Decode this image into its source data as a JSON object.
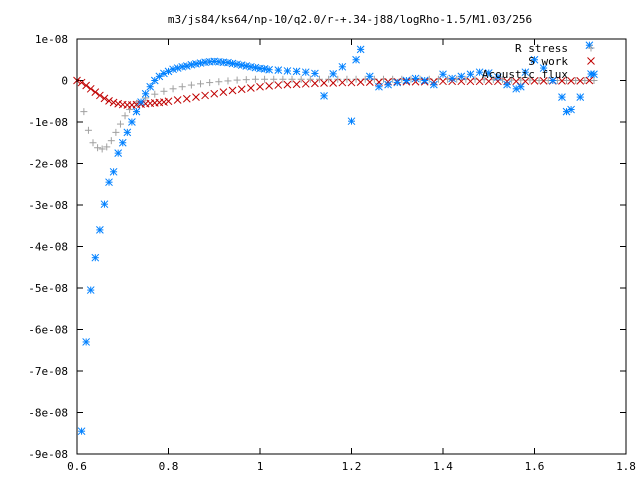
{
  "chart_data": {
    "type": "scatter",
    "title": "m3/js84/ks64/np-10/q2.0/r-+.34-j88/logRho-1.5/M1.03/256",
    "xlabel": "",
    "ylabel": "",
    "xlim": [
      0.6,
      1.8
    ],
    "ylim": [
      -9e-08,
      1e-08
    ],
    "x_ticks": [
      0.6,
      0.8,
      1.0,
      1.2,
      1.4,
      1.6,
      1.8
    ],
    "x_tick_labels": [
      "0.6",
      "0.8",
      "1",
      "1.2",
      "1.4",
      "1.6",
      "1.8"
    ],
    "y_ticks": [
      1e-08,
      0,
      -1e-08,
      -2e-08,
      -3e-08,
      -4e-08,
      -5e-08,
      -6e-08,
      -7e-08,
      -8e-08,
      -9e-08
    ],
    "y_tick_labels": [
      "1e-08",
      "0",
      "-1e-08",
      "-2e-08",
      "-3e-08",
      "-4e-08",
      "-5e-08",
      "-6e-08",
      "-7e-08",
      "-8e-08",
      "-9e-08"
    ],
    "grid": false,
    "legend_position": "top-right",
    "series": [
      {
        "name": "R stress",
        "marker": "plus",
        "color": "#a0a0a0",
        "x": [
          0.615,
          0.625,
          0.635,
          0.645,
          0.655,
          0.665,
          0.675,
          0.685,
          0.695,
          0.705,
          0.715,
          0.73,
          0.75,
          0.77,
          0.79,
          0.81,
          0.83,
          0.85,
          0.87,
          0.89,
          0.91,
          0.93,
          0.95,
          0.97,
          0.99,
          1.01,
          1.03,
          1.05,
          1.07,
          1.09,
          1.11,
          1.13,
          1.15,
          1.17,
          1.19,
          1.21,
          1.23,
          1.25,
          1.27,
          1.29,
          1.31,
          1.33,
          1.35,
          1.37,
          1.39,
          1.41,
          1.43,
          1.45,
          1.47,
          1.49,
          1.51,
          1.53,
          1.55,
          1.57,
          1.59,
          1.61,
          1.63,
          1.65,
          1.67,
          1.69,
          1.71,
          1.73
        ],
        "y": [
          -7.5e-09,
          -1.2e-08,
          -1.5e-08,
          -1.62e-08,
          -1.65e-08,
          -1.6e-08,
          -1.45e-08,
          -1.25e-08,
          -1.05e-08,
          -8.5e-09,
          -7e-09,
          -5.5e-09,
          -4.2e-09,
          -3.3e-09,
          -2.6e-09,
          -2e-09,
          -1.5e-09,
          -1.1e-09,
          -8e-10,
          -5e-10,
          -3e-10,
          -1e-10,
          1e-10,
          2e-10,
          3e-10,
          3e-10,
          3e-10,
          3e-10,
          3e-10,
          3e-10,
          3e-10,
          3e-10,
          3e-10,
          3e-10,
          3e-10,
          3e-10,
          3e-10,
          3e-10,
          3e-10,
          3e-10,
          3e-10,
          3e-10,
          3e-10,
          3e-10,
          3e-10,
          3e-10,
          3e-10,
          3e-10,
          3e-10,
          2e-10,
          2e-10,
          2e-10,
          1e-10,
          1e-10,
          1e-10,
          0,
          0,
          0,
          0,
          0,
          0,
          0
        ]
      },
      {
        "name": "S work",
        "marker": "cross",
        "color": "#c00000",
        "x": [
          0.6,
          0.61,
          0.62,
          0.63,
          0.64,
          0.65,
          0.66,
          0.67,
          0.68,
          0.69,
          0.7,
          0.71,
          0.72,
          0.73,
          0.74,
          0.75,
          0.76,
          0.77,
          0.78,
          0.79,
          0.8,
          0.82,
          0.84,
          0.86,
          0.88,
          0.9,
          0.92,
          0.94,
          0.96,
          0.98,
          1.0,
          1.02,
          1.04,
          1.06,
          1.08,
          1.1,
          1.12,
          1.14,
          1.16,
          1.18,
          1.2,
          1.22,
          1.24,
          1.26,
          1.28,
          1.3,
          1.32,
          1.34,
          1.36,
          1.38,
          1.4,
          1.42,
          1.44,
          1.46,
          1.48,
          1.5,
          1.52,
          1.54,
          1.56,
          1.58,
          1.6,
          1.62,
          1.64,
          1.66,
          1.68,
          1.7,
          1.72
        ],
        "y": [
          0,
          -5e-10,
          -1.2e-09,
          -2e-09,
          -2.8e-09,
          -3.6e-09,
          -4.3e-09,
          -4.9e-09,
          -5.3e-09,
          -5.6e-09,
          -5.8e-09,
          -5.9e-09,
          -5.9e-09,
          -5.8e-09,
          -5.7e-09,
          -5.6e-09,
          -5.5e-09,
          -5.4e-09,
          -5.3e-09,
          -5.2e-09,
          -5e-09,
          -4.7e-09,
          -4.4e-09,
          -4e-09,
          -3.6e-09,
          -3.2e-09,
          -2.8e-09,
          -2.4e-09,
          -2.1e-09,
          -1.8e-09,
          -1.5e-09,
          -1.3e-09,
          -1.1e-09,
          -1e-09,
          -9e-10,
          -8e-10,
          -7e-10,
          -6e-10,
          -6e-10,
          -5e-10,
          -5e-10,
          -4e-10,
          -4e-10,
          -4e-10,
          -3e-10,
          -3e-10,
          -3e-10,
          -3e-10,
          -3e-10,
          -3e-10,
          -2e-10,
          -2e-10,
          -2e-10,
          -2e-10,
          -2e-10,
          -2e-10,
          -2e-10,
          -2e-10,
          -2e-10,
          -2e-10,
          -1e-10,
          -1e-10,
          -1e-10,
          -1e-10,
          -1e-10,
          -1e-10,
          0
        ]
      },
      {
        "name": "Acoustic flux",
        "marker": "star",
        "color": "#0080ff",
        "x": [
          0.61,
          0.62,
          0.63,
          0.64,
          0.65,
          0.66,
          0.67,
          0.68,
          0.69,
          0.7,
          0.71,
          0.72,
          0.73,
          0.74,
          0.75,
          0.76,
          0.77,
          0.78,
          0.79,
          0.8,
          0.81,
          0.82,
          0.83,
          0.84,
          0.85,
          0.86,
          0.87,
          0.88,
          0.89,
          0.9,
          0.91,
          0.92,
          0.93,
          0.94,
          0.95,
          0.96,
          0.97,
          0.98,
          0.99,
          1.0,
          1.01,
          1.02,
          1.04,
          1.06,
          1.08,
          1.1,
          1.12,
          1.14,
          1.16,
          1.18,
          1.2,
          1.21,
          1.22,
          1.24,
          1.26,
          1.28,
          1.3,
          1.32,
          1.34,
          1.36,
          1.38,
          1.4,
          1.42,
          1.44,
          1.46,
          1.48,
          1.5,
          1.52,
          1.54,
          1.56,
          1.57,
          1.58,
          1.6,
          1.62,
          1.64,
          1.66,
          1.67,
          1.68,
          1.7,
          1.72,
          1.73
        ],
        "y": [
          -8.45e-08,
          -6.3e-08,
          -5.05e-08,
          -4.27e-08,
          -3.6e-08,
          -2.98e-08,
          -2.45e-08,
          -2.2e-08,
          -1.75e-08,
          -1.5e-08,
          -1.25e-08,
          -1e-08,
          -7.5e-09,
          -5.2e-09,
          -3.2e-09,
          -1.5e-09,
          0,
          1e-09,
          1.7e-09,
          2.2e-09,
          2.7e-09,
          3e-09,
          3.3e-09,
          3.5e-09,
          3.8e-09,
          4e-09,
          4.2e-09,
          4.4e-09,
          4.5e-09,
          4.6e-09,
          4.5e-09,
          4.4e-09,
          4.3e-09,
          4.1e-09,
          3.9e-09,
          3.7e-09,
          3.5e-09,
          3.3e-09,
          3.1e-09,
          2.9e-09,
          2.8e-09,
          2.6e-09,
          2.5e-09,
          2.3e-09,
          2.2e-09,
          2e-09,
          1.7e-09,
          -3.7e-09,
          1.6e-09,
          3.3e-09,
          -9.8e-09,
          5e-09,
          7.5e-09,
          1e-09,
          -1.5e-09,
          -1e-09,
          -5e-10,
          0,
          5e-10,
          0,
          -1e-09,
          1.5e-09,
          5e-10,
          1e-09,
          1.5e-09,
          2e-09,
          1.8e-09,
          8e-10,
          -1e-09,
          -2e-09,
          -1.5e-09,
          2e-09,
          5e-09,
          3e-09,
          0,
          -4e-09,
          -7.5e-09,
          -7e-09,
          -4e-09,
          8.5e-09,
          1.5e-09
        ]
      }
    ]
  }
}
